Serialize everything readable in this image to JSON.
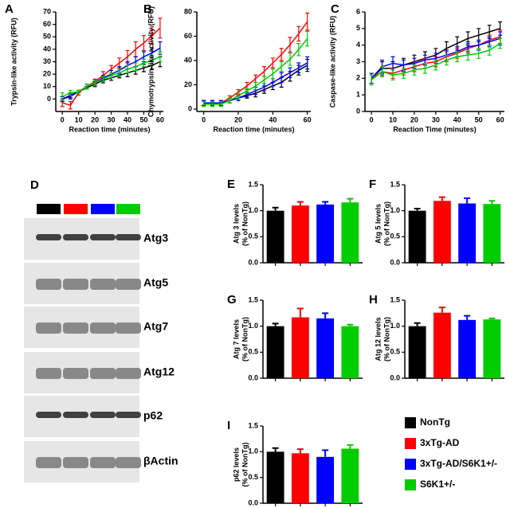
{
  "chart_data": [
    {
      "type": "line",
      "panel": "A",
      "ylabel": "Trypsin-like activity (RFU)",
      "xlabel": "Reaction time  (minutes)",
      "x": [
        0,
        5,
        10,
        15,
        20,
        25,
        30,
        35,
        40,
        45,
        50,
        55,
        60
      ],
      "xlim": [
        -4,
        62
      ],
      "xticks": [
        0,
        10,
        20,
        30,
        40,
        50,
        60
      ],
      "ylim": [
        -10,
        70
      ],
      "yticks": [
        0,
        10,
        20,
        30,
        40,
        50,
        60,
        70
      ],
      "series": [
        {
          "color": "#000000",
          "values": [
            0,
            3,
            6,
            9,
            12,
            15,
            17,
            19,
            21,
            23,
            25,
            27,
            30
          ],
          "errors": [
            2,
            2,
            1,
            1,
            2,
            2,
            2,
            2,
            3,
            3,
            3,
            3,
            4
          ]
        },
        {
          "color": "#ff0000",
          "values": [
            -3,
            -5,
            5,
            10,
            14,
            19,
            24,
            29,
            34,
            40,
            45,
            51,
            57
          ],
          "errors": [
            3,
            3,
            2,
            2,
            2,
            3,
            3,
            4,
            5,
            6,
            6,
            7,
            8
          ]
        },
        {
          "color": "#0000ff",
          "values": [
            0,
            2,
            6,
            10,
            13,
            17,
            20,
            23,
            27,
            30,
            34,
            37,
            41
          ],
          "errors": [
            2,
            2,
            1,
            2,
            2,
            2,
            3,
            3,
            3,
            4,
            4,
            4,
            5
          ]
        },
        {
          "color": "#00cc00",
          "values": [
            2,
            5,
            6,
            10,
            13,
            16,
            19,
            21,
            24,
            26,
            29,
            31,
            34
          ],
          "errors": [
            3,
            2,
            1,
            2,
            2,
            2,
            2,
            3,
            3,
            3,
            3,
            4,
            4
          ]
        }
      ]
    },
    {
      "type": "line",
      "panel": "B",
      "ylabel": "Chymotrypsin-like activity (RFU)",
      "xlabel": "Reaction time  (minutes)",
      "x": [
        0,
        5,
        10,
        15,
        20,
        25,
        30,
        35,
        40,
        45,
        50,
        55,
        60
      ],
      "xlim": [
        -4,
        62
      ],
      "xticks": [
        0,
        20,
        40,
        60
      ],
      "ylim": [
        -2,
        80
      ],
      "yticks": [
        0,
        20,
        40,
        60,
        80
      ],
      "series": [
        {
          "color": "#000000",
          "values": [
            5,
            5,
            5,
            7,
            9,
            11,
            13,
            16,
            19,
            22,
            27,
            32,
            36
          ],
          "errors": [
            2,
            2,
            2,
            2,
            2,
            2,
            3,
            3,
            3,
            4,
            4,
            4,
            5
          ]
        },
        {
          "color": "#ff0000",
          "values": [
            5,
            5,
            5,
            9,
            14,
            19,
            25,
            31,
            38,
            45,
            53,
            62,
            72
          ],
          "errors": [
            2,
            2,
            2,
            2,
            2,
            3,
            3,
            4,
            4,
            5,
            6,
            6,
            7
          ]
        },
        {
          "color": "#0000ff",
          "values": [
            5,
            5,
            5,
            7,
            9,
            12,
            15,
            18,
            22,
            26,
            30,
            34,
            38
          ],
          "errors": [
            2,
            2,
            2,
            2,
            2,
            2,
            3,
            3,
            3,
            4,
            4,
            4,
            5
          ]
        },
        {
          "color": "#00cc00",
          "values": [
            4,
            4,
            4,
            7,
            11,
            15,
            19,
            24,
            29,
            35,
            41,
            49,
            58
          ],
          "errors": [
            2,
            2,
            2,
            2,
            2,
            2,
            3,
            3,
            4,
            4,
            5,
            5,
            6
          ]
        }
      ]
    },
    {
      "type": "line",
      "panel": "C",
      "ylabel": "Caspase-like activity (RFU)",
      "xlabel": "Reaction Time  (minutes)",
      "x": [
        0,
        5,
        10,
        15,
        20,
        25,
        30,
        35,
        40,
        45,
        50,
        55,
        60
      ],
      "xlim": [
        -3,
        62
      ],
      "xticks": [
        0,
        10,
        20,
        30,
        40,
        50,
        60
      ],
      "ylim": [
        0,
        6
      ],
      "yticks": [
        0,
        1,
        2,
        3,
        4,
        5,
        6
      ],
      "series": [
        {
          "color": "#000000",
          "values": [
            2,
            2.6,
            2.6,
            2.8,
            3.0,
            3.2,
            3.4,
            3.8,
            4.1,
            4.4,
            4.6,
            4.8,
            5.0
          ],
          "errors": [
            0.3,
            0.4,
            0.4,
            0.4,
            0.4,
            0.4,
            0.4,
            0.4,
            0.4,
            0.4,
            0.4,
            0.4,
            0.4
          ]
        },
        {
          "color": "#ff0000",
          "values": [
            2,
            2.4,
            2.3,
            2.5,
            2.7,
            2.9,
            3.0,
            3.3,
            3.5,
            3.8,
            4.0,
            4.3,
            4.5
          ],
          "errors": [
            0.3,
            0.3,
            0.3,
            0.3,
            0.3,
            0.3,
            0.3,
            0.3,
            0.3,
            0.3,
            0.3,
            0.3,
            0.4
          ]
        },
        {
          "color": "#0000ff",
          "values": [
            2,
            2.7,
            2.9,
            2.8,
            2.9,
            3.1,
            3.2,
            3.4,
            3.6,
            3.9,
            4.0,
            4.2,
            4.4
          ],
          "errors": [
            0.3,
            0.4,
            0.4,
            0.3,
            0.3,
            0.3,
            0.3,
            0.3,
            0.3,
            0.3,
            0.3,
            0.3,
            0.4
          ]
        },
        {
          "color": "#00cc00",
          "values": [
            1.9,
            2.4,
            2.2,
            2.3,
            2.5,
            2.6,
            2.8,
            3.1,
            3.3,
            3.4,
            3.5,
            3.7,
            4.1
          ],
          "errors": [
            0.3,
            0.3,
            0.3,
            0.3,
            0.3,
            0.3,
            0.3,
            0.3,
            0.3,
            0.3,
            0.3,
            0.3,
            0.3
          ]
        }
      ]
    },
    {
      "type": "bar",
      "panel": "E",
      "ylabel": [
        "Atg 3 levels",
        "(% of  NonTg)"
      ],
      "categories": [
        null,
        null,
        null,
        null
      ],
      "values": [
        1.0,
        1.1,
        1.12,
        1.16
      ],
      "errors": [
        0.06,
        0.07,
        0.05,
        0.07
      ],
      "ylim": [
        0,
        1.5
      ],
      "yticks": [
        {
          "value": 0,
          "label": "0.0"
        },
        {
          "value": 0.5,
          "label": "0.5"
        },
        {
          "value": 1,
          "label": "1.0"
        },
        {
          "value": 1.5,
          "label": "1.5"
        }
      ]
    },
    {
      "type": "bar",
      "panel": "F",
      "ylabel": [
        "Atg 5 levels",
        "(% of  NonTg)"
      ],
      "categories": [
        null,
        null,
        null,
        null
      ],
      "values": [
        1.0,
        1.19,
        1.14,
        1.13
      ],
      "errors": [
        0.04,
        0.07,
        0.1,
        0.06
      ],
      "ylim": [
        0,
        1.5
      ],
      "yticks": [
        {
          "value": 0,
          "label": "0.0"
        },
        {
          "value": 0.5,
          "label": "0.5"
        },
        {
          "value": 1,
          "label": "1.0"
        },
        {
          "value": 1.5,
          "label": "1.5"
        }
      ]
    },
    {
      "type": "bar",
      "panel": "G",
      "ylabel": [
        "Atg 7 levels",
        "(% of  NonTg)"
      ],
      "categories": [
        null,
        null,
        null,
        null
      ],
      "values": [
        1.0,
        1.17,
        1.15,
        1.0
      ],
      "errors": [
        0.05,
        0.17,
        0.1,
        0.03
      ],
      "ylim": [
        0,
        1.5
      ],
      "yticks": [
        {
          "value": 0,
          "label": "0.0"
        },
        {
          "value": 0.5,
          "label": "0.5"
        },
        {
          "value": 1,
          "label": "1.0"
        },
        {
          "value": 1.5,
          "label": "1.5"
        }
      ]
    },
    {
      "type": "bar",
      "panel": "H",
      "ylabel": [
        "Atg 12 levels",
        "(% of  NonTg)"
      ],
      "categories": [
        null,
        null,
        null,
        null
      ],
      "values": [
        1.0,
        1.26,
        1.12,
        1.13
      ],
      "errors": [
        0.06,
        0.1,
        0.08,
        0.02
      ],
      "ylim": [
        0,
        1.5
      ],
      "yticks": [
        {
          "value": 0,
          "label": "0.0"
        },
        {
          "value": 0.5,
          "label": "0.5"
        },
        {
          "value": 1,
          "label": "1.0"
        },
        {
          "value": 1.5,
          "label": "1.5"
        }
      ]
    },
    {
      "type": "bar",
      "panel": "I",
      "ylabel": [
        "p62 levels",
        "(% of  NonTg)"
      ],
      "categories": [
        null,
        null,
        null,
        null
      ],
      "values": [
        1.0,
        0.97,
        0.9,
        1.06
      ],
      "errors": [
        0.07,
        0.08,
        0.13,
        0.07
      ],
      "ylim": [
        0,
        1.5
      ],
      "yticks": [
        {
          "value": 0,
          "label": "0.0"
        },
        {
          "value": 0.5,
          "label": "0.5"
        },
        {
          "value": 1,
          "label": "1.0"
        },
        {
          "value": 1.5,
          "label": "1.5"
        }
      ]
    }
  ],
  "blot": {
    "panel": "D",
    "labels": [
      "Atg3",
      "Atg5",
      "Atg7",
      "Atg12",
      "p62",
      "βActin"
    ]
  },
  "legend": {
    "names": [
      "NonTg",
      "3xTg-AD",
      "3xTg-AD/S6K1+/-",
      "S6K1+/-"
    ],
    "colors": [
      "#000000",
      "#ff0000",
      "#0000ff",
      "#00cc00"
    ]
  }
}
